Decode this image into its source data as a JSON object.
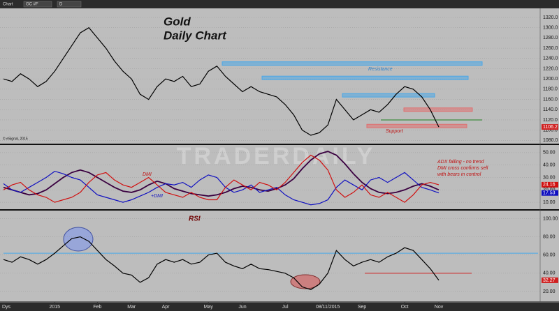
{
  "toolbar": {
    "title": "Chart",
    "symbol": "GC #F",
    "interval": "D"
  },
  "watermark": "TRADERDAILY",
  "copyright": "© eSignal, 2015",
  "chart_data": [
    {
      "type": "line",
      "title": "Gold",
      "subtitle": "Daily Chart",
      "xlabel": "Dys",
      "categories": [
        null,
        null,
        null,
        null,
        null,
        null,
        "2015",
        null,
        null,
        null,
        null,
        "Feb",
        null,
        null,
        null,
        "Mar",
        null,
        null,
        null,
        "Apr",
        null,
        null,
        null,
        null,
        "May",
        null,
        null,
        null,
        "Jun",
        null,
        null,
        null,
        null,
        "Jul",
        null,
        null,
        null,
        null,
        "08/11/2015",
        null,
        null,
        null,
        "Sep",
        null,
        null,
        null,
        null,
        "Oct",
        null,
        null,
        null,
        "Nov"
      ],
      "series": [
        {
          "color": "#000000",
          "values": [
            1200,
            1195,
            1210,
            1200,
            1185,
            1195,
            1215,
            1240,
            1265,
            1290,
            1300,
            1280,
            1260,
            1235,
            1215,
            1200,
            1170,
            1160,
            1185,
            1200,
            1195,
            1205,
            1185,
            1190,
            1215,
            1225,
            1205,
            1190,
            1175,
            1185,
            1175,
            1170,
            1165,
            1150,
            1130,
            1100,
            1090,
            1095,
            1110,
            1160,
            1140,
            1120,
            1130,
            1140,
            1135,
            1150,
            1170,
            1185,
            1180,
            1165,
            1140,
            1106.2
          ]
        }
      ],
      "levels": [
        {
          "value": 1230,
          "color": "#4aa8e8"
        },
        {
          "value": 1202,
          "color": "#4aa8e8"
        },
        {
          "value": 1168,
          "color": "#4aa8e8"
        },
        {
          "value": 1140,
          "color": "#e07070"
        },
        {
          "value": 1108,
          "color": "#e07070"
        },
        {
          "value": 1120,
          "color": "#208020"
        }
      ],
      "annotations": [
        "Resistance",
        "Support"
      ],
      "ylim": [
        1075,
        1335
      ],
      "yticks": [
        {
          "value": 1080,
          "label": "1080.0"
        },
        {
          "value": 1100,
          "label": "1100.0"
        },
        {
          "value": 1120,
          "label": "1120.0"
        },
        {
          "value": 1140,
          "label": "1140.0"
        },
        {
          "value": 1160,
          "label": "1160.0"
        },
        {
          "value": 1180,
          "label": "1180.0"
        },
        {
          "value": 1200,
          "label": "1200.0"
        },
        {
          "value": 1220,
          "label": "1220.0"
        },
        {
          "value": 1240,
          "label": "1240.0"
        },
        {
          "value": 1260,
          "label": "1260.0"
        },
        {
          "value": 1280,
          "label": "1280.0"
        },
        {
          "value": 1300,
          "label": "1300.0"
        },
        {
          "value": 1320,
          "label": "1320.0"
        }
      ]
    },
    {
      "type": "line",
      "series": [
        {
          "color": "#3a0040",
          "values": [
            22,
            20,
            18,
            16,
            17,
            20,
            25,
            30,
            34,
            36,
            34,
            30,
            26,
            22,
            19,
            18,
            20,
            24,
            27,
            25,
            21,
            19,
            17,
            16,
            15,
            16,
            18,
            21,
            23,
            22,
            20,
            19,
            21,
            24,
            29,
            37,
            44,
            49,
            51,
            48,
            41,
            33,
            26,
            21,
            18,
            17,
            18,
            20,
            23,
            25,
            23,
            20
          ]
        },
        {
          "name": "+DMI",
          "color": "#1010c0",
          "values": [
            25,
            20,
            18,
            22,
            26,
            30,
            35,
            33,
            30,
            28,
            22,
            16,
            14,
            12,
            10,
            12,
            15,
            18,
            22,
            25,
            24,
            26,
            22,
            28,
            32,
            30,
            22,
            18,
            20,
            24,
            18,
            20,
            22,
            16,
            12,
            10,
            8,
            9,
            12,
            22,
            28,
            24,
            20,
            28,
            30,
            26,
            30,
            34,
            28,
            22,
            20,
            17.53
          ]
        },
        {
          "name": "DMI",
          "color": "#d01010",
          "values": [
            20,
            24,
            26,
            20,
            16,
            14,
            10,
            12,
            14,
            18,
            26,
            32,
            34,
            28,
            24,
            22,
            26,
            30,
            24,
            18,
            16,
            14,
            18,
            14,
            12,
            12,
            22,
            28,
            24,
            20,
            26,
            24,
            20,
            26,
            34,
            42,
            48,
            44,
            36,
            20,
            14,
            18,
            24,
            16,
            14,
            18,
            14,
            10,
            16,
            24,
            26,
            24.16
          ]
        }
      ],
      "annotations": [
        "ADX falling - no trend",
        "DMI cross confirms sell",
        "with bears in control"
      ],
      "ylim": [
        5,
        55
      ],
      "yticks": [
        {
          "value": 10,
          "label": "10.00"
        },
        {
          "value": 20,
          "label": "20.00"
        },
        {
          "value": 30,
          "label": "30.00"
        },
        {
          "value": 40,
          "label": "40.00"
        },
        {
          "value": 50,
          "label": "50.00"
        }
      ]
    },
    {
      "type": "line",
      "title": "RSI",
      "series": [
        {
          "color": "#000000",
          "values": [
            55,
            52,
            58,
            55,
            50,
            55,
            62,
            70,
            78,
            80,
            75,
            65,
            55,
            48,
            40,
            38,
            30,
            35,
            50,
            55,
            52,
            55,
            50,
            52,
            60,
            62,
            52,
            48,
            45,
            50,
            45,
            44,
            42,
            40,
            35,
            25,
            22,
            28,
            40,
            65,
            55,
            48,
            52,
            55,
            52,
            58,
            62,
            68,
            65,
            55,
            45,
            32.27
          ]
        }
      ],
      "levels": [
        {
          "value": 62,
          "color": "#4aa8e8"
        },
        {
          "value": 40,
          "color": "#d02020"
        }
      ],
      "ylim": [
        10,
        108
      ],
      "yticks": [
        {
          "value": 20,
          "label": "20.00"
        },
        {
          "value": 40,
          "label": "40.00"
        },
        {
          "value": 60,
          "label": "60.00"
        },
        {
          "value": 80,
          "label": "80.00"
        },
        {
          "value": 100,
          "label": "100.00"
        }
      ]
    }
  ]
}
